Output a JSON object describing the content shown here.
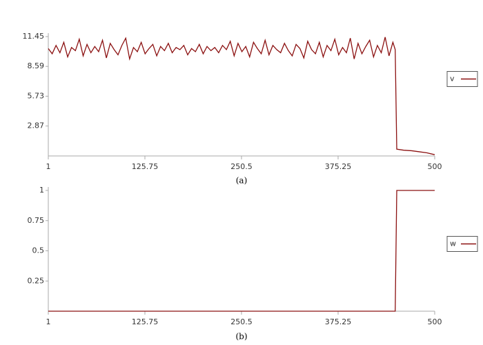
{
  "chart_data": [
    {
      "type": "line",
      "caption": "(a)",
      "legend": "right",
      "x": [
        1,
        6,
        11,
        16,
        21,
        26,
        31,
        36,
        41,
        46,
        51,
        56,
        61,
        66,
        71,
        76,
        81,
        86,
        91,
        96,
        101,
        106,
        111,
        116,
        121,
        126,
        131,
        136,
        141,
        146,
        151,
        156,
        161,
        166,
        171,
        176,
        181,
        186,
        191,
        196,
        201,
        206,
        211,
        216,
        221,
        226,
        231,
        236,
        241,
        246,
        251,
        256,
        261,
        266,
        271,
        276,
        281,
        286,
        291,
        296,
        301,
        306,
        311,
        316,
        321,
        326,
        331,
        336,
        341,
        346,
        351,
        356,
        361,
        366,
        371,
        376,
        381,
        386,
        391,
        396,
        401,
        406,
        411,
        416,
        421,
        426,
        431,
        436,
        441,
        446,
        449,
        451,
        460,
        470,
        480,
        490,
        500
      ],
      "series": [
        {
          "name": "v",
          "color": "#8b1010",
          "values": [
            10.3,
            9.8,
            10.6,
            9.9,
            10.9,
            9.5,
            10.4,
            10.1,
            11.2,
            9.6,
            10.7,
            9.9,
            10.5,
            10.0,
            11.1,
            9.4,
            10.8,
            10.2,
            9.7,
            10.6,
            11.3,
            9.3,
            10.4,
            10.0,
            10.9,
            9.8,
            10.3,
            10.7,
            9.6,
            10.5,
            10.1,
            10.8,
            9.9,
            10.4,
            10.2,
            10.6,
            9.7,
            10.3,
            10.0,
            10.7,
            9.8,
            10.5,
            10.1,
            10.4,
            9.9,
            10.6,
            10.2,
            11.0,
            9.6,
            10.8,
            10.0,
            10.5,
            9.5,
            10.9,
            10.3,
            9.8,
            11.1,
            9.7,
            10.6,
            10.2,
            9.9,
            10.8,
            10.1,
            9.6,
            10.7,
            10.3,
            9.4,
            11.0,
            10.2,
            9.8,
            10.9,
            9.5,
            10.6,
            10.1,
            11.2,
            9.7,
            10.4,
            9.9,
            11.3,
            9.3,
            10.8,
            9.8,
            10.5,
            11.1,
            9.5,
            10.6,
            9.9,
            11.4,
            9.6,
            10.9,
            10.2,
            0.65,
            0.55,
            0.5,
            0.4,
            0.3,
            0.12
          ]
        }
      ],
      "xlim": [
        1,
        500
      ],
      "xticks": [
        1,
        125.75,
        250.5,
        375.25,
        500
      ],
      "ylim": [
        0,
        11.45
      ],
      "yticks": [
        2.87,
        5.73,
        8.59,
        11.45
      ]
    },
    {
      "type": "line",
      "caption": "(b)",
      "legend": "right",
      "x": [
        1,
        449,
        451,
        500
      ],
      "series": [
        {
          "name": "w",
          "color": "#8b1010",
          "values": [
            0,
            0,
            1,
            1
          ]
        }
      ],
      "xlim": [
        1,
        500
      ],
      "xticks": [
        1,
        125.75,
        250.5,
        375.25,
        500
      ],
      "ylim": [
        0,
        1
      ],
      "yticks": [
        0.25,
        0.5,
        0.75,
        1
      ]
    }
  ]
}
